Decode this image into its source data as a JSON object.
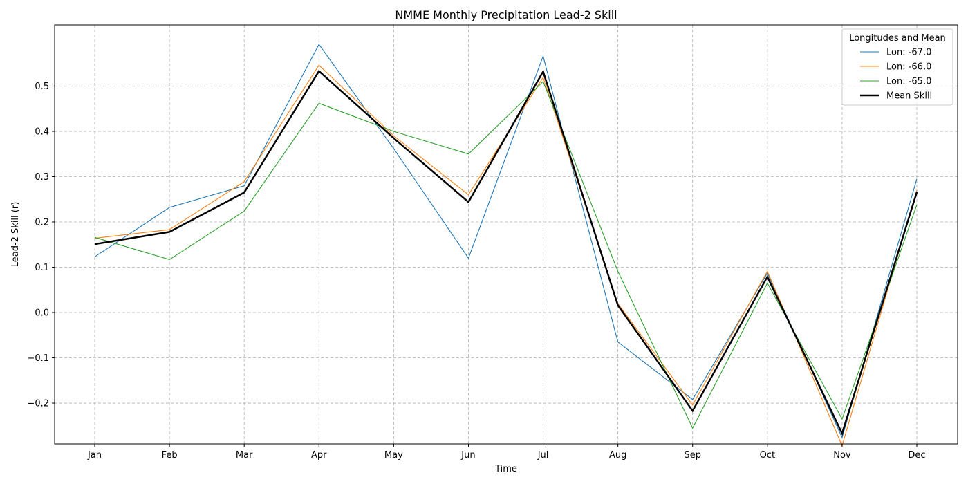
{
  "chart_data": {
    "type": "line",
    "title": "NMME Monthly Precipitation Lead-2 Skill",
    "xlabel": "Time",
    "ylabel": "Lead-2 Skill (r)",
    "categories": [
      "Jan",
      "Feb",
      "Mar",
      "Apr",
      "May",
      "Jun",
      "Jul",
      "Aug",
      "Sep",
      "Oct",
      "Nov",
      "Dec"
    ],
    "ylim": [
      -0.29,
      0.635
    ],
    "yticks": [
      -0.2,
      -0.1,
      0.0,
      0.1,
      0.2,
      0.3,
      0.4,
      0.5
    ],
    "ytick_labels": [
      "−0.2",
      "−0.1",
      "0.0",
      "0.1",
      "0.2",
      "0.3",
      "0.4",
      "0.5"
    ],
    "grid": true,
    "legend": {
      "title": "Longitudes and Mean",
      "placement": "top-right"
    },
    "series": [
      {
        "name": "Lon: -67.0",
        "color": "#1f77b4",
        "width": "thin",
        "values": [
          0.123,
          0.232,
          0.28,
          0.592,
          0.362,
          0.12,
          0.566,
          -0.065,
          -0.192,
          0.087,
          -0.276,
          0.295
        ]
      },
      {
        "name": "Lon: -66.0",
        "color": "#ff7f0e",
        "width": "thin",
        "values": [
          0.164,
          0.183,
          0.289,
          0.546,
          0.39,
          0.26,
          0.519,
          0.02,
          -0.204,
          0.091,
          -0.294,
          0.27
        ]
      },
      {
        "name": "Lon: -65.0",
        "color": "#2ca02c",
        "width": "thin",
        "values": [
          0.166,
          0.117,
          0.224,
          0.462,
          0.4,
          0.35,
          0.51,
          0.091,
          -0.255,
          0.065,
          -0.235,
          0.238
        ]
      },
      {
        "name": "Mean Skill",
        "color": "#000000",
        "width": "thick",
        "values": [
          0.151,
          0.178,
          0.265,
          0.533,
          0.385,
          0.244,
          0.532,
          0.016,
          -0.217,
          0.079,
          -0.267,
          0.266
        ]
      }
    ]
  }
}
